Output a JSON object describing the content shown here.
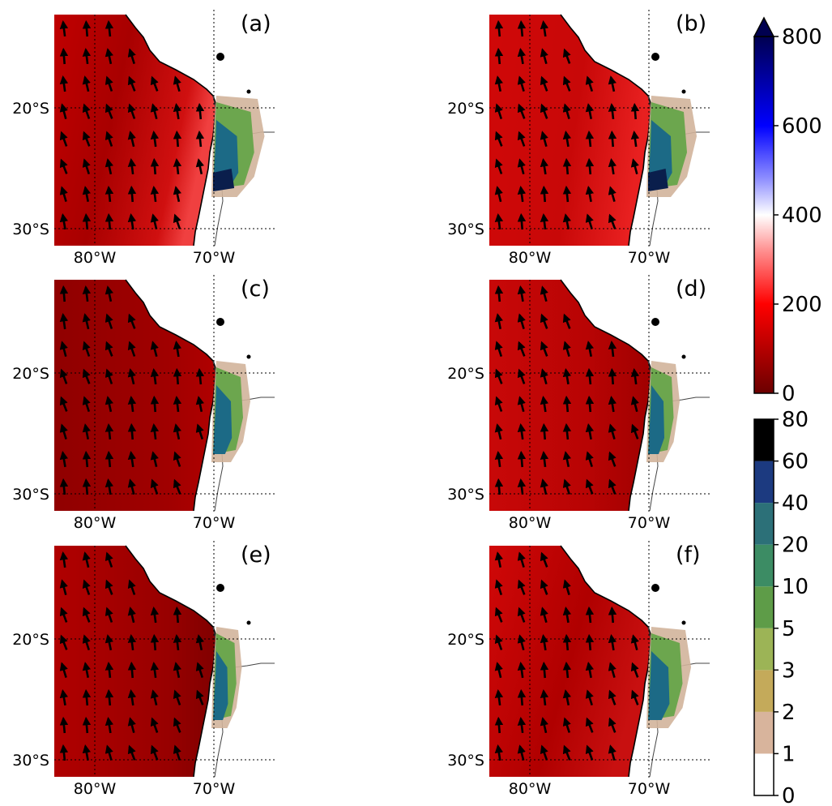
{
  "panels": [
    {
      "label": "(a)"
    },
    {
      "label": "(b)"
    },
    {
      "label": "(c)"
    },
    {
      "label": "(d)"
    },
    {
      "label": "(e)"
    },
    {
      "label": "(f)"
    }
  ],
  "axes": {
    "lat_ticks": [
      "20°S",
      "30°S"
    ],
    "lon_ticks": [
      "80°W",
      "70°W"
    ]
  },
  "colorbar_top": {
    "ticks": [
      "0",
      "200",
      "400",
      "600",
      "800"
    ],
    "extend": "max",
    "colors": [
      "#6b0000",
      "#ff0000",
      "#ffffff",
      "#0000ff",
      "#000050"
    ]
  },
  "colorbar_bottom": {
    "ticks": [
      "0",
      "1",
      "2",
      "3",
      "5",
      "10",
      "20",
      "40",
      "60",
      "80"
    ],
    "colors": [
      "#ffffff",
      "#d8b49c",
      "#c4aa5a",
      "#9cb456",
      "#5e9c48",
      "#3c8c64",
      "#2c7078",
      "#1c3a80",
      "#000000"
    ]
  },
  "colors": {
    "ocean_dark": "#8c0000",
    "ocean_mid": "#c40808",
    "ocean_light": "#f03030",
    "precip_low": "#d2b49b",
    "precip_mid": "#6ca64e",
    "precip_high": "#1c6a86",
    "precip_max": "#0a1e4c"
  }
}
